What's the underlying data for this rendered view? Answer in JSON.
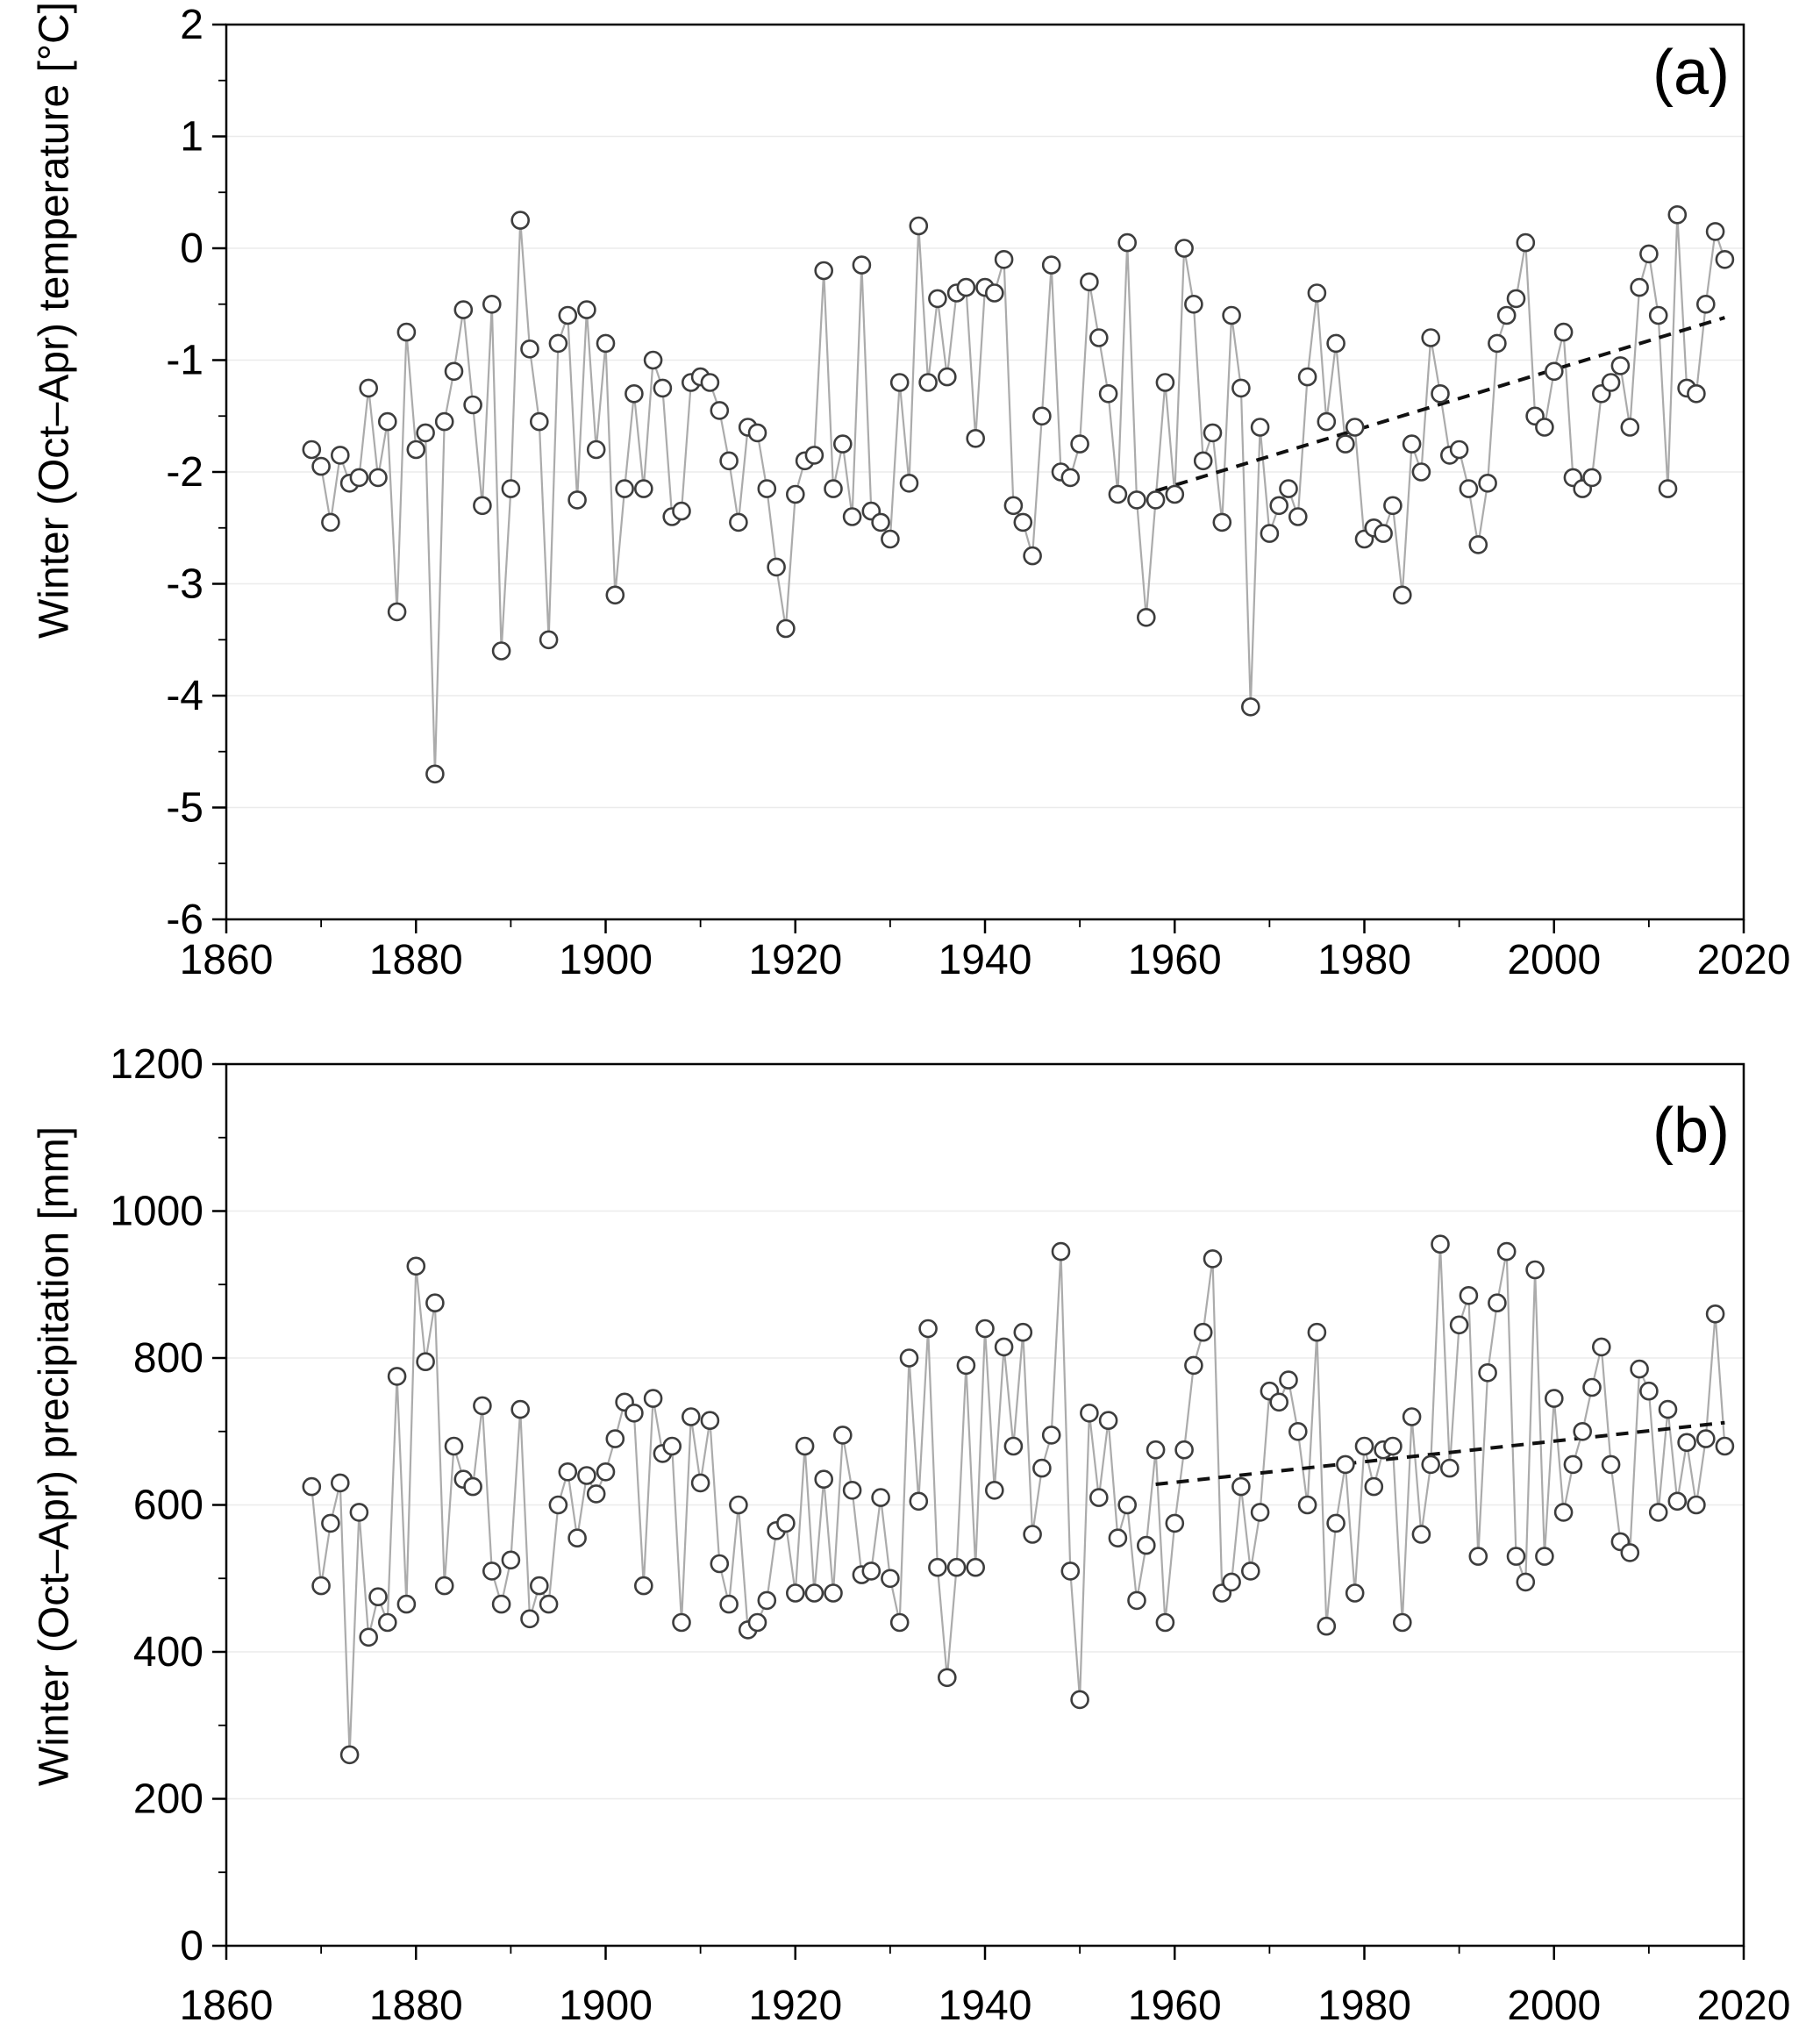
{
  "figure": {
    "background": "#ffffff",
    "axis_color": "#000000",
    "grid_color": "#ebebeb",
    "line_color": "#ababab",
    "marker_stroke": "#3d3d3d",
    "marker_fill": "#ffffff",
    "trend_color": "#111111"
  },
  "chart_data": [
    {
      "type": "scatter",
      "panel_label": "(a)",
      "title": "",
      "xlabel": "",
      "ylabel": "Winter (Oct–Apr) temperature [°C]",
      "xlim": [
        1860,
        2020
      ],
      "ylim": [
        -6,
        2
      ],
      "xtick_step": 20,
      "ytick_step": 1,
      "xtick_minor_step": 10,
      "ytick_minor_step": 0.5,
      "grid": "horizontal-faint",
      "legend": "none",
      "marker": "open-circle",
      "x": {
        "start": 1869,
        "step": 1
      },
      "values": [
        -1.8,
        -1.95,
        -2.45,
        -1.85,
        -2.1,
        -2.05,
        -1.25,
        -2.05,
        -1.55,
        -3.25,
        -0.75,
        -1.8,
        -1.65,
        -4.7,
        -1.55,
        -1.1,
        -0.55,
        -1.4,
        -2.3,
        -0.5,
        -3.6,
        -2.15,
        0.25,
        -0.9,
        -1.55,
        -3.5,
        -0.85,
        -0.6,
        -2.25,
        -0.55,
        -1.8,
        -0.85,
        -3.1,
        -2.15,
        -1.3,
        -2.15,
        -1.0,
        -1.25,
        -2.4,
        -2.35,
        -1.2,
        -1.15,
        -1.2,
        -1.45,
        -1.9,
        -2.45,
        -1.6,
        -1.65,
        -2.15,
        -2.85,
        -3.4,
        -2.2,
        -1.9,
        -1.85,
        -0.2,
        -2.15,
        -1.75,
        -2.4,
        -0.15,
        -2.35,
        -2.45,
        -2.6,
        -1.2,
        -2.1,
        0.2,
        -1.2,
        -0.45,
        -1.15,
        -0.4,
        -0.35,
        -1.7,
        -0.35,
        -0.4,
        -0.1,
        -2.3,
        -2.45,
        -2.75,
        -1.5,
        -0.15,
        -2.0,
        -2.05,
        -1.75,
        -0.3,
        -0.8,
        -1.3,
        -2.2,
        0.05,
        -2.25,
        -3.3,
        -2.25,
        -1.2,
        -2.2,
        0.0,
        -0.5,
        -1.9,
        -1.65,
        -2.45,
        -0.6,
        -1.25,
        -4.1,
        -1.6,
        -2.55,
        -2.3,
        -2.15,
        -2.4,
        -1.15,
        -0.4,
        -1.55,
        -0.85,
        -1.75,
        -1.6,
        -2.6,
        -2.5,
        -2.55,
        -2.3,
        -3.1,
        -1.75,
        -2.0,
        -0.8,
        -1.3,
        -1.85,
        -1.8,
        -2.15,
        -2.65,
        -2.1,
        -0.85,
        -0.6,
        -0.45,
        0.05,
        -1.5,
        -1.6,
        -1.1,
        -0.75,
        -2.05,
        -2.15,
        -2.05,
        -1.3,
        -1.2,
        -1.05,
        -1.6,
        -0.35,
        -0.05,
        -0.6,
        -2.15,
        0.3,
        -1.25,
        -1.3,
        -0.5,
        0.15,
        -0.1
      ],
      "trend_line": {
        "style": "dashed",
        "x": [
          1958,
          2018
        ],
        "y": [
          -2.17,
          -0.62
        ]
      }
    },
    {
      "type": "scatter",
      "panel_label": "(b)",
      "title": "",
      "xlabel": "",
      "ylabel": "Winter (Oct–Apr) precipitation [mm]",
      "xlim": [
        1860,
        2020
      ],
      "ylim": [
        0,
        1200
      ],
      "xtick_step": 20,
      "ytick_step": 200,
      "xtick_minor_step": 10,
      "ytick_minor_step": 100,
      "grid": "horizontal-faint",
      "legend": "none",
      "marker": "open-circle",
      "x": {
        "start": 1869,
        "step": 1
      },
      "values": [
        625,
        490,
        575,
        630,
        260,
        590,
        420,
        475,
        440,
        775,
        465,
        925,
        795,
        875,
        490,
        680,
        635,
        625,
        735,
        510,
        465,
        525,
        730,
        445,
        490,
        465,
        600,
        645,
        555,
        640,
        615,
        645,
        690,
        740,
        725,
        490,
        745,
        670,
        680,
        440,
        720,
        630,
        715,
        520,
        465,
        600,
        430,
        440,
        470,
        565,
        575,
        480,
        680,
        480,
        635,
        480,
        695,
        620,
        505,
        510,
        610,
        500,
        440,
        800,
        605,
        840,
        515,
        365,
        515,
        790,
        515,
        840,
        620,
        815,
        680,
        835,
        560,
        650,
        695,
        945,
        510,
        335,
        725,
        610,
        715,
        555,
        600,
        470,
        545,
        675,
        440,
        575,
        675,
        790,
        835,
        935,
        480,
        495,
        625,
        510,
        590,
        755,
        740,
        770,
        700,
        600,
        835,
        435,
        575,
        655,
        480,
        680,
        625,
        675,
        680,
        440,
        720,
        560,
        655,
        955,
        650,
        845,
        885,
        530,
        780,
        875,
        945,
        530,
        495,
        920,
        530,
        745,
        590,
        655,
        700,
        760,
        815,
        655,
        550,
        535,
        785,
        755,
        590,
        730,
        605,
        685,
        600,
        690,
        860,
        680
      ],
      "trend_line": {
        "style": "dashed",
        "x": [
          1958,
          2018
        ],
        "y": [
          628,
          712
        ]
      }
    }
  ]
}
